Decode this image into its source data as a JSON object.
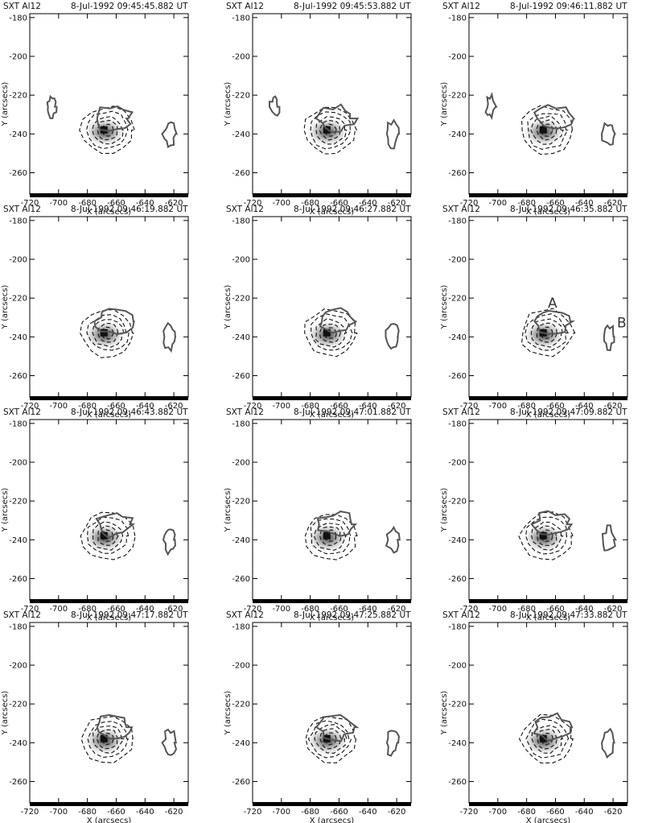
{
  "figure": {
    "panels": [
      {
        "instrument": "SXT Al12",
        "timestamp": "8-Jul-1992 09:45:45.882 UT"
      },
      {
        "instrument": "SXT Al12",
        "timestamp": "8-Jul-1992 09:45:53.882 UT"
      },
      {
        "instrument": "SXT Al12",
        "timestamp": "8-Jul-1992 09:46:11.882 UT"
      },
      {
        "instrument": "SXT Al12",
        "timestamp": "8-Jul-1992 09:46:19.882 UT"
      },
      {
        "instrument": "SXT Al12",
        "timestamp": "8-Jul-1992 09:46:27.882 UT"
      },
      {
        "instrument": "SXT Al12",
        "timestamp": "8-Jul-1992 09:46:35.882 UT",
        "labels": [
          "A",
          "B"
        ]
      },
      {
        "instrument": "SXT Al12",
        "timestamp": "8-Jul-1992 09:46:43.882 UT"
      },
      {
        "instrument": "SXT Al12",
        "timestamp": "8-Jul-1992 09:47:01.882 UT"
      },
      {
        "instrument": "SXT Al12",
        "timestamp": "8-Jul-1992 09:47:09.882 UT"
      },
      {
        "instrument": "SXT Al12",
        "timestamp": "8-Jul-1992 09:47:17.882 UT"
      },
      {
        "instrument": "SXT Al12",
        "timestamp": "8-Jul-1992 09:47:25.882 UT"
      },
      {
        "instrument": "SXT Al12",
        "timestamp": "8-Jul-1992 09:47:33.882 UT"
      }
    ],
    "axes": {
      "xlabel": "X (arcsecs)",
      "ylabel": "Y (arcsecs)",
      "xlim": [
        -720,
        -610
      ],
      "ylim": [
        -271,
        -178
      ],
      "xticks": [
        -720,
        -700,
        -680,
        -660,
        -640,
        -620
      ],
      "yticks": [
        -180,
        -200,
        -220,
        -240,
        -260
      ]
    },
    "colors": {
      "image": "#3a3a3a",
      "solid_contour": "#555555",
      "dashed_contour": "#111111"
    }
  }
}
